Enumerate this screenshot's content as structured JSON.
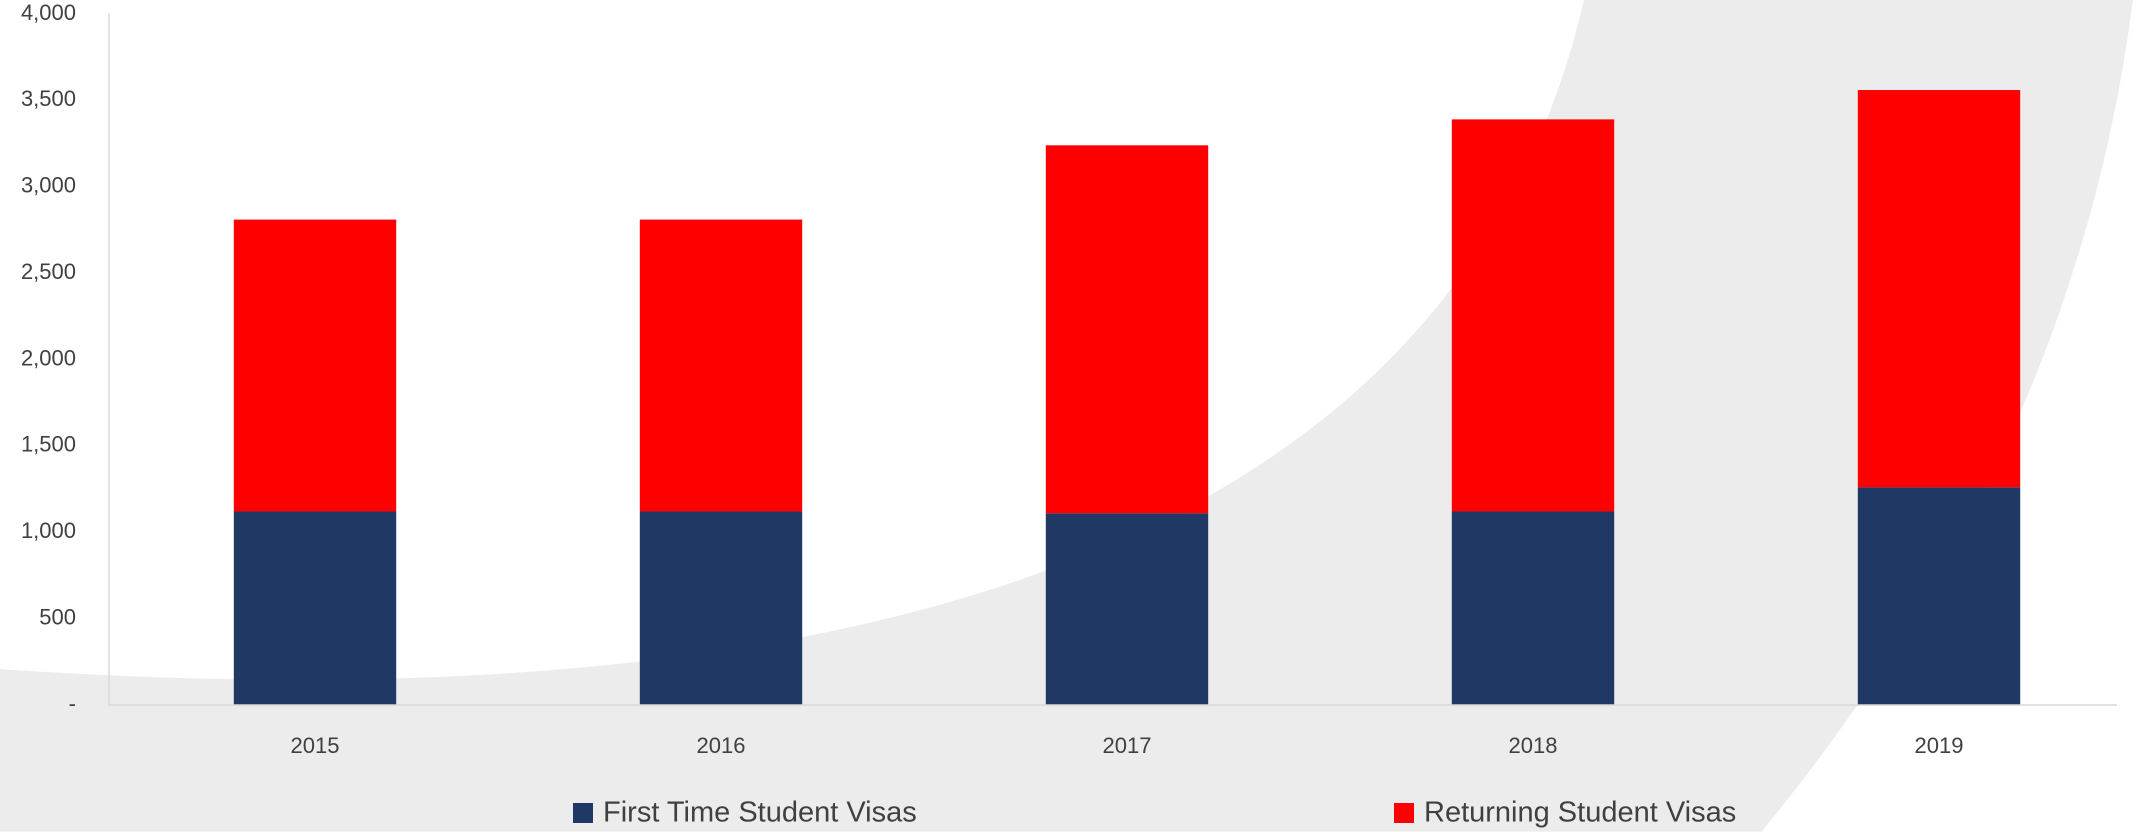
{
  "chart_data": {
    "type": "stacked_bar",
    "categories": [
      "2015",
      "2016",
      "2017",
      "2018",
      "2019"
    ],
    "series": [
      {
        "name": "First Time Student Visas",
        "color": "#203864",
        "values": [
          1120,
          1120,
          1110,
          1120,
          1260
        ]
      },
      {
        "name": "Returning Student Visas",
        "color": "#ff0000",
        "values": [
          1690,
          1690,
          2130,
          2270,
          2300
        ]
      }
    ],
    "ylim": [
      0,
      4000
    ],
    "yticks": [
      {
        "value": 0,
        "label": "-"
      },
      500,
      {
        "value": 1000,
        "label": "1,000"
      },
      {
        "value": 1500,
        "label": "1,500"
      },
      {
        "value": 2000,
        "label": "2,000"
      },
      {
        "value": 2500,
        "label": "2,500"
      },
      {
        "value": 3000,
        "label": "3,000"
      },
      {
        "value": 3500,
        "label": "3,500"
      },
      {
        "value": 4000,
        "label": "4,000"
      }
    ],
    "grid": false,
    "legend": "bottom"
  }
}
